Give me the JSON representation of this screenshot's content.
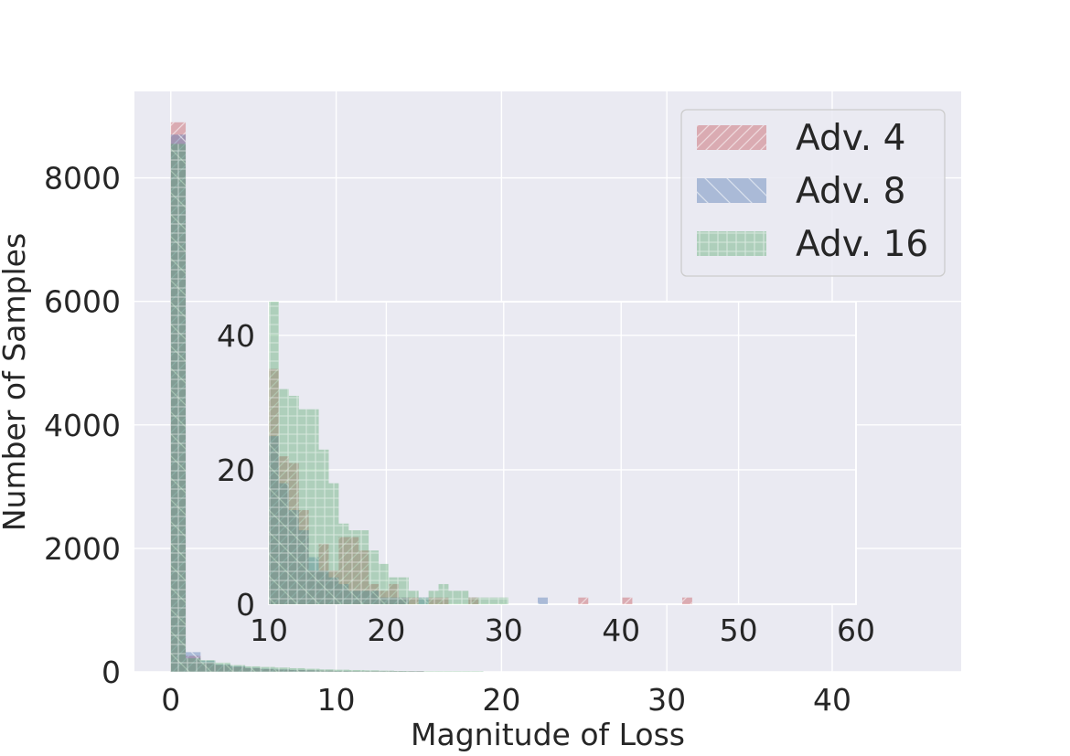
{
  "chart_data": [
    {
      "type": "bar",
      "panel": "main",
      "xlabel": "Magnitude of Loss",
      "ylabel": "Number of Samples",
      "xlim": [
        -2.2,
        47.8
      ],
      "ylim": [
        0,
        9400
      ],
      "xticks": [
        0,
        10,
        20,
        30,
        40
      ],
      "yticks": [
        0,
        2000,
        4000,
        6000,
        8000
      ],
      "grid": true,
      "legend_position": "top-right",
      "legend": [
        "Adv. 4",
        "Adv. 8",
        "Adv. 16"
      ],
      "bin_width": 0.9,
      "series": [
        {
          "name": "Adv. 4",
          "color": "#c44e52",
          "hatch": "diagonal",
          "bins": [
            [
              0,
              8900
            ],
            [
              0.9,
              260
            ],
            [
              1.8,
              150
            ],
            [
              2.7,
              110
            ],
            [
              3.6,
              80
            ],
            [
              4.5,
              60
            ],
            [
              5.4,
              45
            ],
            [
              6.3,
              35
            ],
            [
              7.2,
              30
            ],
            [
              8.1,
              25
            ],
            [
              9.0,
              20
            ],
            [
              9.9,
              15
            ],
            [
              10.8,
              12
            ],
            [
              11.7,
              10
            ],
            [
              12.6,
              8
            ],
            [
              13.5,
              6
            ],
            [
              14.4,
              5
            ]
          ]
        },
        {
          "name": "Adv. 8",
          "color": "#4c72b0",
          "hatch": "backslash",
          "bins": [
            [
              0,
              8700
            ],
            [
              0.9,
              320
            ],
            [
              1.8,
              180
            ],
            [
              2.7,
              120
            ],
            [
              3.6,
              90
            ],
            [
              4.5,
              65
            ],
            [
              5.4,
              50
            ],
            [
              6.3,
              40
            ],
            [
              7.2,
              32
            ],
            [
              8.1,
              26
            ],
            [
              9.0,
              20
            ],
            [
              9.9,
              16
            ],
            [
              10.8,
              12
            ],
            [
              11.7,
              10
            ],
            [
              12.6,
              8
            ],
            [
              13.5,
              6
            ],
            [
              14.4,
              5
            ]
          ]
        },
        {
          "name": "Adv. 16",
          "color": "#55a868",
          "hatch": "grid",
          "bins": [
            [
              0,
              8550
            ],
            [
              0.9,
              220
            ],
            [
              1.8,
              190
            ],
            [
              2.7,
              150
            ],
            [
              3.6,
              110
            ],
            [
              4.5,
              90
            ],
            [
              5.4,
              80
            ],
            [
              6.3,
              70
            ],
            [
              7.2,
              60
            ],
            [
              8.1,
              50
            ],
            [
              9.0,
              40
            ],
            [
              9.9,
              35
            ],
            [
              10.8,
              30
            ],
            [
              11.7,
              25
            ],
            [
              12.6,
              20
            ],
            [
              13.5,
              15
            ],
            [
              14.4,
              12
            ],
            [
              15.3,
              10
            ],
            [
              16.2,
              8
            ],
            [
              17.1,
              6
            ],
            [
              18.0,
              5
            ]
          ]
        }
      ]
    },
    {
      "type": "bar",
      "panel": "inset",
      "xlim": [
        10,
        60
      ],
      "ylim": [
        0,
        45
      ],
      "xticks": [
        10,
        20,
        30,
        40,
        50,
        60
      ],
      "yticks": [
        0,
        20,
        40
      ],
      "grid": true,
      "bin_width": 0.85,
      "series": [
        {
          "name": "Adv. 4",
          "color": "#c44e52",
          "bins": [
            [
              10,
              35
            ],
            [
              10.85,
              22
            ],
            [
              11.7,
              21
            ],
            [
              12.55,
              14
            ],
            [
              13.4,
              5
            ],
            [
              14.25,
              9
            ],
            [
              15.1,
              5
            ],
            [
              15.95,
              10
            ],
            [
              16.8,
              10
            ],
            [
              17.65,
              8
            ],
            [
              18.5,
              3
            ],
            [
              19.35,
              2
            ],
            [
              20.2,
              3
            ],
            [
              21.05,
              1
            ],
            [
              21.9,
              1
            ],
            [
              22.75,
              0
            ],
            [
              23.6,
              1
            ],
            [
              24.45,
              1
            ],
            [
              27.0,
              1
            ],
            [
              36.35,
              1
            ],
            [
              40.1,
              1
            ],
            [
              45.2,
              1
            ]
          ]
        },
        {
          "name": "Adv. 8",
          "color": "#4c72b0",
          "bins": [
            [
              10,
              25
            ],
            [
              10.85,
              18
            ],
            [
              11.7,
              14
            ],
            [
              12.55,
              11
            ],
            [
              13.4,
              7
            ],
            [
              14.25,
              5
            ],
            [
              15.1,
              4
            ],
            [
              15.95,
              3
            ],
            [
              16.8,
              2
            ],
            [
              17.65,
              2
            ],
            [
              18.5,
              2
            ],
            [
              19.35,
              1
            ],
            [
              20.2,
              1
            ],
            [
              21.05,
              1
            ],
            [
              22.75,
              1
            ],
            [
              32.9,
              1
            ]
          ]
        },
        {
          "name": "Adv. 16",
          "color": "#55a868",
          "bins": [
            [
              10,
              45
            ],
            [
              10.85,
              32
            ],
            [
              11.7,
              31
            ],
            [
              12.55,
              29
            ],
            [
              13.4,
              29
            ],
            [
              14.25,
              23
            ],
            [
              15.1,
              18
            ],
            [
              15.95,
              12
            ],
            [
              16.8,
              11
            ],
            [
              17.65,
              11
            ],
            [
              18.5,
              8
            ],
            [
              19.35,
              6
            ],
            [
              20.2,
              4
            ],
            [
              21.05,
              4
            ],
            [
              21.9,
              2
            ],
            [
              22.75,
              1
            ],
            [
              23.6,
              2
            ],
            [
              24.45,
              3
            ],
            [
              25.3,
              2
            ],
            [
              26.15,
              2
            ],
            [
              27.0,
              1
            ],
            [
              27.85,
              1
            ],
            [
              28.7,
              1
            ],
            [
              29.55,
              1
            ]
          ]
        }
      ]
    }
  ]
}
